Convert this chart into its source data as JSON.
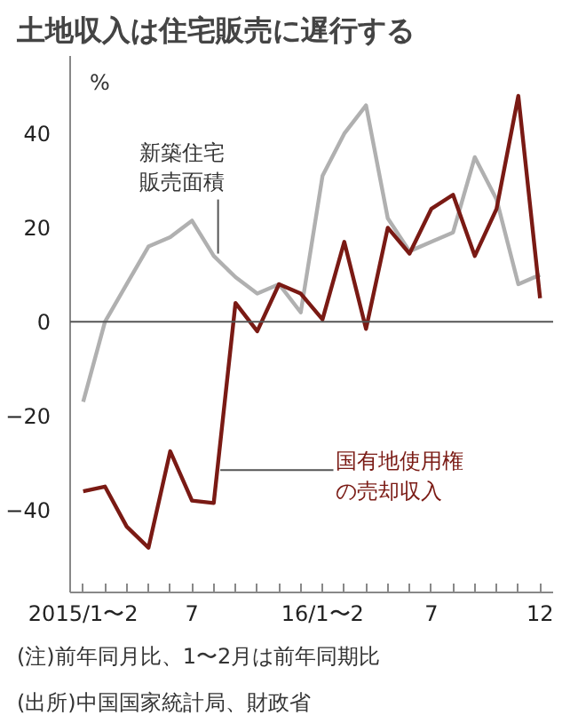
{
  "chart_data": {
    "type": "line",
    "title": "土地収入は住宅販売に遅行する",
    "ylabel": "%",
    "categories": [
      "2015/1〜2",
      null,
      null,
      null,
      null,
      "7",
      null,
      null,
      null,
      null,
      null,
      "16/1〜2",
      null,
      null,
      null,
      null,
      "7",
      null,
      null,
      null,
      null,
      "12"
    ],
    "series": [
      {
        "name": "新築住宅販売面積",
        "color": "#b0b0b0",
        "values": [
          -17,
          0,
          8,
          16,
          18,
          21.5,
          14,
          9.5,
          6,
          8,
          2,
          31,
          40,
          46,
          22,
          15,
          17,
          19,
          35,
          26,
          8,
          10
        ]
      },
      {
        "name": "国有地使用権の売却収入",
        "color": "#7a1a14",
        "values": [
          -36,
          -35,
          -43.5,
          -48,
          -27.5,
          -38,
          -38.5,
          4,
          -2,
          8,
          6,
          0.5,
          17,
          -1.5,
          20,
          14.5,
          24,
          27,
          14,
          24,
          48,
          5
        ]
      }
    ],
    "ylim": [
      -57.5,
      56.5
    ],
    "yticks": [
      -40,
      -20,
      0,
      20,
      40
    ],
    "ref_lines": [
      {
        "axis": "y",
        "value": 0,
        "color": "#555555"
      }
    ],
    "grid": false,
    "annotations": [
      "(注)前年同月比、1〜2月は前年同期比",
      "(出所)中国国家統計局、財政省"
    ]
  }
}
